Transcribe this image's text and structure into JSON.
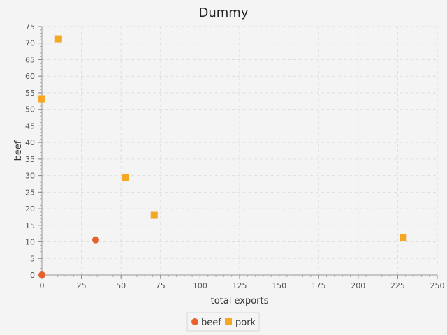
{
  "chart_data": {
    "type": "scatter",
    "title": "Dummy",
    "xlabel": "total exports",
    "ylabel": "beef",
    "xlim": [
      0,
      250
    ],
    "ylim": [
      0,
      75
    ],
    "xticks": [
      0,
      25,
      50,
      75,
      100,
      125,
      150,
      175,
      200,
      225,
      250
    ],
    "yticks": [
      0,
      5,
      10,
      15,
      20,
      25,
      30,
      35,
      40,
      45,
      50,
      55,
      60,
      65,
      70,
      75
    ],
    "grid": true,
    "legend_position": "bottom-center",
    "series": [
      {
        "name": "beef",
        "marker": "circle",
        "color": "#e8602c",
        "points": [
          {
            "x": 0,
            "y": 0
          },
          {
            "x": 34,
            "y": 10.6
          }
        ]
      },
      {
        "name": "pork",
        "marker": "square",
        "color": "#f5a623",
        "points": [
          {
            "x": 10.5,
            "y": 71.3
          },
          {
            "x": 0,
            "y": 53.2
          },
          {
            "x": 53,
            "y": 29.5
          },
          {
            "x": 71,
            "y": 18
          },
          {
            "x": 228.5,
            "y": 11.2
          }
        ]
      }
    ]
  }
}
